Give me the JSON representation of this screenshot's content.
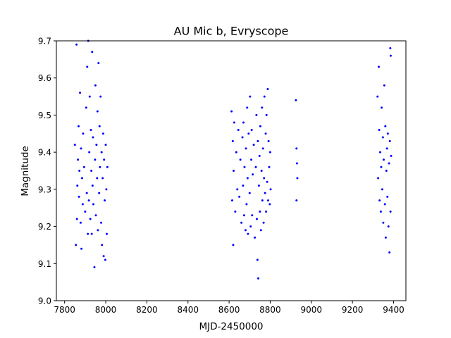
{
  "chart_data": {
    "type": "scatter",
    "title": "AU Mic b, Evryscope",
    "xlabel": "MJD-2450000",
    "ylabel": "Magnitude",
    "xlim": [
      7760,
      9460
    ],
    "ylim": [
      9.0,
      9.7
    ],
    "xticks": [
      7800,
      8000,
      8200,
      8400,
      8600,
      8800,
      9000,
      9200,
      9400
    ],
    "yticks": [
      9.0,
      9.1,
      9.2,
      9.3,
      9.4,
      9.5,
      9.6,
      9.7
    ],
    "grid": false,
    "marker_color": "#0000ff",
    "series": [
      {
        "points": [
          [
            7850,
            9.42
          ],
          [
            7855,
            9.15
          ],
          [
            7858,
            9.69
          ],
          [
            7860,
            9.22
          ],
          [
            7862,
            9.31
          ],
          [
            7865,
            9.38
          ],
          [
            7868,
            9.47
          ],
          [
            7870,
            9.28
          ],
          [
            7872,
            9.35
          ],
          [
            7875,
            9.56
          ],
          [
            7878,
            9.21
          ],
          [
            7880,
            9.41
          ],
          [
            7882,
            9.14
          ],
          [
            7885,
            9.33
          ],
          [
            7888,
            9.26
          ],
          [
            7890,
            9.45
          ],
          [
            7895,
            9.36
          ],
          [
            7900,
            9.24
          ],
          [
            7905,
            9.52
          ],
          [
            7908,
            9.29
          ],
          [
            7910,
            9.63
          ],
          [
            7913,
            9.18
          ],
          [
            7915,
            9.7
          ],
          [
            7918,
            9.27
          ],
          [
            7920,
            9.4
          ],
          [
            7922,
            9.55
          ],
          [
            7925,
            9.22
          ],
          [
            7928,
            9.46
          ],
          [
            7930,
            9.35
          ],
          [
            7932,
            9.18
          ],
          [
            7934,
            9.67
          ],
          [
            7936,
            9.31
          ],
          [
            7938,
            9.44
          ],
          [
            7940,
            9.26
          ],
          [
            7945,
            9.09
          ],
          [
            7948,
            9.38
          ],
          [
            7950,
            9.58
          ],
          [
            7952,
            9.23
          ],
          [
            7955,
            9.42
          ],
          [
            7958,
            9.33
          ],
          [
            7960,
            9.51
          ],
          [
            7962,
            9.19
          ],
          [
            7965,
            9.64
          ],
          [
            7968,
            9.29
          ],
          [
            7970,
            9.47
          ],
          [
            7972,
            9.36
          ],
          [
            7975,
            9.55
          ],
          [
            7978,
            9.21
          ],
          [
            7980,
            9.4
          ],
          [
            7982,
            9.15
          ],
          [
            7985,
            9.33
          ],
          [
            7988,
            9.45
          ],
          [
            7990,
            9.12
          ],
          [
            7992,
            9.38
          ],
          [
            7995,
            9.27
          ],
          [
            7998,
            9.11
          ],
          [
            8000,
            9.42
          ],
          [
            8003,
            9.3
          ],
          [
            8005,
            9.18
          ],
          [
            8008,
            9.36
          ],
          [
            8612,
            9.51
          ],
          [
            8615,
            9.27
          ],
          [
            8618,
            9.43
          ],
          [
            8620,
            9.15
          ],
          [
            8622,
            9.35
          ],
          [
            8625,
            9.48
          ],
          [
            8630,
            9.24
          ],
          [
            8635,
            9.4
          ],
          [
            8640,
            9.3
          ],
          [
            8645,
            9.46
          ],
          [
            8650,
            9.28
          ],
          [
            8655,
            9.38
          ],
          [
            8660,
            9.21
          ],
          [
            8665,
            9.44
          ],
          [
            8668,
            9.31
          ],
          [
            8670,
            9.48
          ],
          [
            8673,
            9.23
          ],
          [
            8675,
            9.36
          ],
          [
            8680,
            9.19
          ],
          [
            8682,
            9.41
          ],
          [
            8685,
            9.26
          ],
          [
            8688,
            9.52
          ],
          [
            8690,
            9.33
          ],
          [
            8692,
            9.18
          ],
          [
            8695,
            9.45
          ],
          [
            8700,
            9.29
          ],
          [
            8702,
            9.55
          ],
          [
            8705,
            9.2
          ],
          [
            8708,
            9.38
          ],
          [
            8710,
            9.46
          ],
          [
            8712,
            9.23
          ],
          [
            8715,
            9.34
          ],
          [
            8720,
            9.42
          ],
          [
            8725,
            9.17
          ],
          [
            8730,
            9.36
          ],
          [
            8733,
            9.5
          ],
          [
            8735,
            9.22
          ],
          [
            8738,
            9.11
          ],
          [
            8740,
            9.43
          ],
          [
            8742,
            9.06
          ],
          [
            8745,
            9.31
          ],
          [
            8748,
            9.39
          ],
          [
            8750,
            9.24
          ],
          [
            8752,
            9.47
          ],
          [
            8755,
            9.19
          ],
          [
            8758,
            9.35
          ],
          [
            8760,
            9.52
          ],
          [
            8762,
            9.27
          ],
          [
            8765,
            9.41
          ],
          [
            8768,
            9.21
          ],
          [
            8770,
            9.33
          ],
          [
            8772,
            9.55
          ],
          [
            8775,
            9.29
          ],
          [
            8778,
            9.45
          ],
          [
            8780,
            9.24
          ],
          [
            8782,
            9.5
          ],
          [
            8785,
            9.32
          ],
          [
            8788,
            9.57
          ],
          [
            8790,
            9.27
          ],
          [
            8792,
            9.43
          ],
          [
            8795,
            9.36
          ],
          [
            8798,
            9.26
          ],
          [
            8800,
            9.4
          ],
          [
            8802,
            9.3
          ],
          [
            8925,
            9.54
          ],
          [
            8928,
            9.41
          ],
          [
            8930,
            9.37
          ],
          [
            8932,
            9.33
          ],
          [
            8928,
            9.27
          ],
          [
            9322,
            9.55
          ],
          [
            9325,
            9.33
          ],
          [
            9328,
            9.63
          ],
          [
            9330,
            9.46
          ],
          [
            9332,
            9.27
          ],
          [
            9335,
            9.4
          ],
          [
            9338,
            9.24
          ],
          [
            9340,
            9.36
          ],
          [
            9342,
            9.52
          ],
          [
            9345,
            9.3
          ],
          [
            9348,
            9.44
          ],
          [
            9350,
            9.21
          ],
          [
            9352,
            9.38
          ],
          [
            9355,
            9.58
          ],
          [
            9358,
            9.26
          ],
          [
            9360,
            9.47
          ],
          [
            9362,
            9.17
          ],
          [
            9365,
            9.35
          ],
          [
            9368,
            9.41
          ],
          [
            9370,
            9.28
          ],
          [
            9372,
            9.45
          ],
          [
            9375,
            9.2
          ],
          [
            9378,
            9.37
          ],
          [
            9380,
            9.13
          ],
          [
            9382,
            9.43
          ],
          [
            9385,
            9.24
          ],
          [
            9388,
            9.39
          ],
          [
            9384,
            9.68
          ],
          [
            9386,
            9.66
          ]
        ]
      }
    ]
  }
}
